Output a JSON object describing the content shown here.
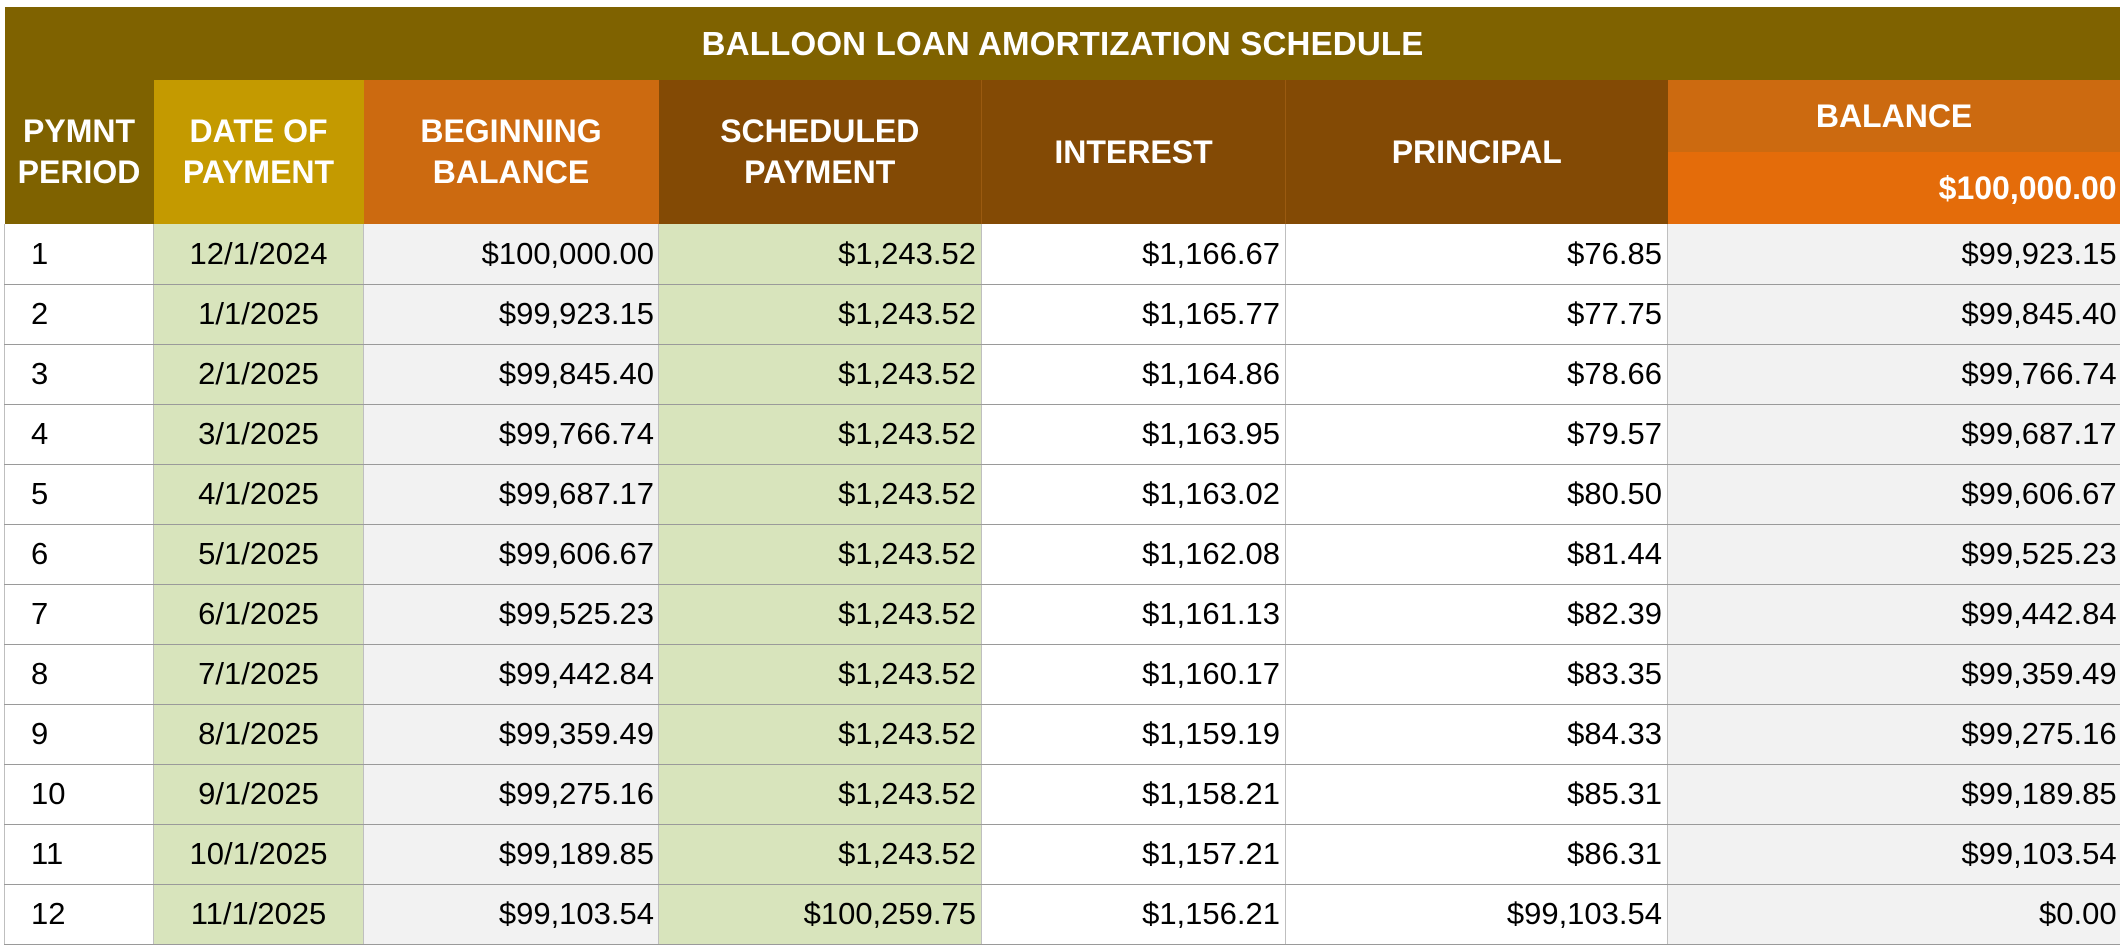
{
  "title": "BALLOON LOAN AMORTIZATION SCHEDULE",
  "headers": {
    "period_line1": "PYMNT",
    "period_line2": "PERIOD",
    "date_line1": "DATE OF",
    "date_line2": "PAYMENT",
    "begin_line1": "BEGINNING",
    "begin_line2": "BALANCE",
    "sched_line1": "SCHEDULED",
    "sched_line2": "PAYMENT",
    "interest": "INTEREST",
    "principal": "PRINCIPAL",
    "balance": "BALANCE",
    "balance_initial": "$100,000.00"
  },
  "rows": [
    {
      "period": "1",
      "date": "12/1/2024",
      "begin": "$100,000.00",
      "sched": "$1,243.52",
      "interest": "$1,166.67",
      "principal": "$76.85",
      "balance": "$99,923.15"
    },
    {
      "period": "2",
      "date": "1/1/2025",
      "begin": "$99,923.15",
      "sched": "$1,243.52",
      "interest": "$1,165.77",
      "principal": "$77.75",
      "balance": "$99,845.40"
    },
    {
      "period": "3",
      "date": "2/1/2025",
      "begin": "$99,845.40",
      "sched": "$1,243.52",
      "interest": "$1,164.86",
      "principal": "$78.66",
      "balance": "$99,766.74"
    },
    {
      "period": "4",
      "date": "3/1/2025",
      "begin": "$99,766.74",
      "sched": "$1,243.52",
      "interest": "$1,163.95",
      "principal": "$79.57",
      "balance": "$99,687.17"
    },
    {
      "period": "5",
      "date": "4/1/2025",
      "begin": "$99,687.17",
      "sched": "$1,243.52",
      "interest": "$1,163.02",
      "principal": "$80.50",
      "balance": "$99,606.67"
    },
    {
      "period": "6",
      "date": "5/1/2025",
      "begin": "$99,606.67",
      "sched": "$1,243.52",
      "interest": "$1,162.08",
      "principal": "$81.44",
      "balance": "$99,525.23"
    },
    {
      "period": "7",
      "date": "6/1/2025",
      "begin": "$99,525.23",
      "sched": "$1,243.52",
      "interest": "$1,161.13",
      "principal": "$82.39",
      "balance": "$99,442.84"
    },
    {
      "period": "8",
      "date": "7/1/2025",
      "begin": "$99,442.84",
      "sched": "$1,243.52",
      "interest": "$1,160.17",
      "principal": "$83.35",
      "balance": "$99,359.49"
    },
    {
      "period": "9",
      "date": "8/1/2025",
      "begin": "$99,359.49",
      "sched": "$1,243.52",
      "interest": "$1,159.19",
      "principal": "$84.33",
      "balance": "$99,275.16"
    },
    {
      "period": "10",
      "date": "9/1/2025",
      "begin": "$99,275.16",
      "sched": "$1,243.52",
      "interest": "$1,158.21",
      "principal": "$85.31",
      "balance": "$99,189.85"
    },
    {
      "period": "11",
      "date": "10/1/2025",
      "begin": "$99,189.85",
      "sched": "$1,243.52",
      "interest": "$1,157.21",
      "principal": "$86.31",
      "balance": "$99,103.54"
    },
    {
      "period": "12",
      "date": "11/1/2025",
      "begin": "$99,103.54",
      "sched": "$100,259.75",
      "interest": "$1,156.21",
      "principal": "$99,103.54",
      "balance": "$0.00"
    }
  ]
}
